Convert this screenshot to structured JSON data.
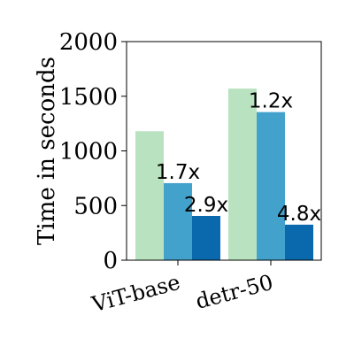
{
  "chart_data": {
    "type": "bar",
    "categories": [
      "ViT-base",
      "detr-50"
    ],
    "series": [
      {
        "values": [
          1180,
          1570
        ],
        "color": "#b9e3c0"
      },
      {
        "values": [
          705,
          1355
        ],
        "color": "#43a2cc"
      },
      {
        "values": [
          405,
          325
        ],
        "color": "#0a68ad"
      }
    ],
    "annotations": [
      {
        "text": "1.7x",
        "category_index": 0,
        "series_index": 1
      },
      {
        "text": "2.9x",
        "category_index": 0,
        "series_index": 2
      },
      {
        "text": "1.2x",
        "category_index": 1,
        "series_index": 1
      },
      {
        "text": "4.8x",
        "category_index": 1,
        "series_index": 2
      }
    ],
    "ylabel": "Time in seconds",
    "xlabel": "",
    "ylim": [
      0,
      2000
    ],
    "yticks": [
      0,
      500,
      1000,
      1500,
      2000
    ],
    "ytick_labels": [
      "0",
      "500",
      "1000",
      "1500",
      "2000"
    ],
    "xtick_labels": [
      "ViT-base",
      "detr-50"
    ],
    "grid": false,
    "legend": "none"
  }
}
